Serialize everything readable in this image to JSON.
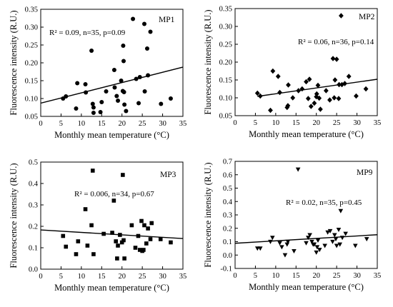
{
  "chart_data": [
    {
      "type": "scatter",
      "marker": "circle",
      "label": "MP1",
      "stats": "R² = 0.09, n=35, p=0.09",
      "xlabel": "Monthly mean temperature (°C)",
      "ylabel": "Fluorescence intensity (R.U.)",
      "xlim": [
        0,
        35
      ],
      "ylim": [
        0.05,
        0.35
      ],
      "xticks": [
        "0",
        "5",
        "10",
        "15",
        "20",
        "25",
        "30",
        "35"
      ],
      "yticks": [
        "0.05",
        "0.10",
        "0.15",
        "0.20",
        "0.25",
        "0.30",
        "0.35"
      ],
      "trendline": {
        "x": [
          0,
          35
        ],
        "y": [
          0.087,
          0.188
        ]
      },
      "x": [
        5.5,
        6.2,
        8.7,
        9.0,
        11.0,
        11.1,
        12.5,
        12.8,
        13.0,
        13.0,
        14.7,
        15.0,
        16.1,
        18.1,
        18.2,
        18.7,
        19.0,
        19.8,
        20.2,
        20.3,
        20.4,
        20.5,
        20.6,
        21.0,
        22.7,
        23.5,
        24.1,
        24.4,
        25.5,
        25.6,
        26.2,
        26.4,
        27.0,
        29.6,
        32.0
      ],
      "y": [
        0.1,
        0.106,
        0.072,
        0.143,
        0.14,
        0.117,
        0.234,
        0.085,
        0.075,
        0.06,
        0.062,
        0.09,
        0.12,
        0.18,
        0.131,
        0.107,
        0.094,
        0.15,
        0.121,
        0.248,
        0.205,
        0.118,
        0.083,
        0.065,
        0.323,
        0.155,
        0.087,
        0.16,
        0.309,
        0.12,
        0.24,
        0.165,
        0.287,
        0.085,
        0.1
      ]
    },
    {
      "type": "scatter",
      "marker": "diamond",
      "label": "MP2",
      "stats": "R² = 0.06, n=36, p=0.14",
      "xlabel": "Monthly mean temperature (°C)",
      "ylabel": "Fluorescence intensity (R.U.)",
      "xlim": [
        0,
        35
      ],
      "ylim": [
        0.05,
        0.35
      ],
      "xticks": [
        "0",
        "5",
        "10",
        "15",
        "20",
        "25",
        "30",
        "35"
      ],
      "yticks": [
        "0.05",
        "0.10",
        "0.15",
        "0.20",
        "0.25",
        "0.30",
        "0.35"
      ],
      "trendline": {
        "x": [
          5.5,
          35
        ],
        "y": [
          0.104,
          0.152
        ]
      },
      "x": [
        5.5,
        6.2,
        8.7,
        9.3,
        10.6,
        11.0,
        12.8,
        13.0,
        13.1,
        14.2,
        15.6,
        16.5,
        17.5,
        18.0,
        18.3,
        18.7,
        19.5,
        20.0,
        20.1,
        20.4,
        20.7,
        21.0,
        22.4,
        23.3,
        24.1,
        24.4,
        24.6,
        25.0,
        25.5,
        25.6,
        26.1,
        26.3,
        27.0,
        28.0,
        29.8,
        32.2
      ],
      "y": [
        0.113,
        0.105,
        0.065,
        0.175,
        0.16,
        0.115,
        0.073,
        0.078,
        0.136,
        0.1,
        0.12,
        0.125,
        0.145,
        0.098,
        0.152,
        0.076,
        0.085,
        0.103,
        0.111,
        0.135,
        0.099,
        0.068,
        0.12,
        0.094,
        0.21,
        0.1,
        0.15,
        0.208,
        0.098,
        0.137,
        0.33,
        0.137,
        0.14,
        0.16,
        0.105,
        0.125
      ]
    },
    {
      "type": "scatter",
      "marker": "square",
      "label": "MP3",
      "stats": "R² = 0.006, n=34, p=0.67",
      "xlabel": "Monthly mean temperature (°C)",
      "ylabel": "Fluorescence intensity (R.U.)",
      "xlim": [
        0,
        35
      ],
      "ylim": [
        0.0,
        0.5
      ],
      "xticks": [
        "0",
        "5",
        "10",
        "15",
        "20",
        "25",
        "30",
        "35"
      ],
      "yticks": [
        "0.0",
        "0.1",
        "0.2",
        "0.3",
        "0.4",
        "0.5"
      ],
      "trendline": {
        "x": [
          0,
          35
        ],
        "y": [
          0.183,
          0.143
        ]
      },
      "x": [
        5.5,
        6.2,
        8.7,
        9.2,
        11.0,
        11.5,
        12.5,
        12.8,
        13.0,
        15.5,
        17.6,
        18.0,
        18.5,
        18.8,
        19.0,
        19.5,
        20.0,
        20.2,
        20.4,
        20.6,
        22.4,
        23.3,
        24.0,
        24.4,
        24.8,
        25.0,
        25.3,
        25.5,
        26.0,
        26.4,
        27.0,
        27.3,
        29.5,
        32.0
      ],
      "y": [
        0.155,
        0.105,
        0.07,
        0.13,
        0.28,
        0.11,
        0.205,
        0.46,
        0.07,
        0.165,
        0.17,
        0.32,
        0.13,
        0.05,
        0.11,
        0.16,
        0.125,
        0.44,
        0.135,
        0.05,
        0.205,
        0.1,
        0.155,
        0.09,
        0.225,
        0.085,
        0.09,
        0.205,
        0.12,
        0.19,
        0.14,
        0.215,
        0.14,
        0.125
      ]
    },
    {
      "type": "scatter",
      "marker": "triangle-down",
      "label": "MP9",
      "stats": "R² = 0.02, n=35, p=0.45",
      "xlabel": "Monthly mean temperature (°C)",
      "ylabel": "Fluorescence intensity (R.U.)",
      "xlim": [
        0,
        35
      ],
      "ylim": [
        -0.1,
        0.7
      ],
      "xticks": [
        "0",
        "5",
        "10",
        "15",
        "20",
        "25",
        "30",
        "35"
      ],
      "yticks": [
        "-0.1",
        "0.0",
        "0.1",
        "0.2",
        "0.3",
        "0.4",
        "0.5",
        "0.6",
        "0.7"
      ],
      "trendline": {
        "x": [
          0,
          35
        ],
        "y": [
          0.088,
          0.152
        ]
      },
      "x": [
        5.5,
        6.2,
        8.7,
        9.2,
        11.0,
        11.5,
        12.3,
        12.8,
        13.0,
        14.5,
        15.5,
        17.5,
        18.0,
        18.4,
        18.9,
        19.2,
        19.5,
        20.0,
        20.2,
        20.4,
        20.8,
        22.1,
        22.8,
        23.4,
        24.0,
        24.5,
        24.8,
        25.0,
        25.5,
        25.8,
        26.0,
        26.4,
        27.2,
        29.6,
        32.4
      ],
      "y": [
        0.05,
        0.05,
        0.1,
        0.13,
        0.09,
        0.06,
        0.0,
        0.08,
        0.1,
        0.03,
        0.64,
        0.09,
        0.13,
        0.15,
        0.1,
        0.08,
        0.08,
        0.02,
        0.06,
        0.11,
        0.04,
        0.07,
        0.17,
        0.18,
        0.1,
        0.15,
        0.12,
        0.07,
        0.19,
        0.08,
        0.33,
        0.13,
        0.16,
        0.07,
        0.12
      ]
    }
  ]
}
